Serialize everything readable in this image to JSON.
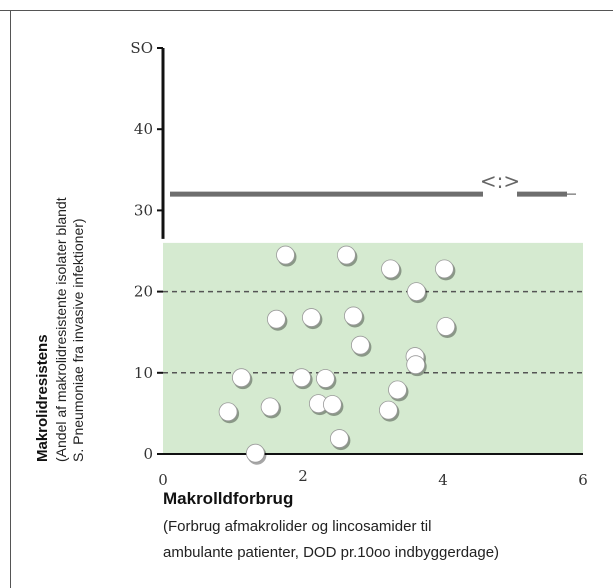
{
  "chart_data": {
    "type": "scatter",
    "title": "",
    "ylabel": "Makrolidresistens",
    "ylabel_sub": [
      "(Andel af makrolidresistente isolater blandt",
      "S. Pneumoniae fra invasive infektioner)"
    ],
    "xlabel": "Makrolldforbrug",
    "xlabel_sub": [
      "(Forbrug afmakrolider  og lincosamider til",
      "ambulante patienter, DOD pr.10oo  indbyggerdage)"
    ],
    "xlim": [
      0,
      6
    ],
    "ylim": [
      0,
      50
    ],
    "x_ticks": [
      "0",
      "2",
      "4",
      "6"
    ],
    "y_ticks": [
      "0",
      "10",
      "20",
      "30",
      "40",
      "SO"
    ],
    "threshold_line": 32,
    "green_band_max": 26,
    "dashed_lines": [
      10,
      20
    ],
    "annotation": "<:>",
    "colors": {
      "band": "#d5ead0",
      "points": "#ffffff",
      "threshold": "#6e6e6e"
    },
    "points": [
      {
        "x": 0.93,
        "y": 5.2
      },
      {
        "x": 1.12,
        "y": 9.4
      },
      {
        "x": 1.32,
        "y": 0.1
      },
      {
        "x": 1.53,
        "y": 5.8
      },
      {
        "x": 1.62,
        "y": 16.6
      },
      {
        "x": 1.75,
        "y": 24.5
      },
      {
        "x": 1.98,
        "y": 9.4
      },
      {
        "x": 2.12,
        "y": 16.8
      },
      {
        "x": 2.22,
        "y": 6.2
      },
      {
        "x": 2.32,
        "y": 9.3
      },
      {
        "x": 2.42,
        "y": 6.1
      },
      {
        "x": 2.52,
        "y": 1.9
      },
      {
        "x": 2.62,
        "y": 24.5
      },
      {
        "x": 2.72,
        "y": 17.0
      },
      {
        "x": 2.82,
        "y": 13.4
      },
      {
        "x": 3.22,
        "y": 5.4
      },
      {
        "x": 3.25,
        "y": 22.8
      },
      {
        "x": 3.35,
        "y": 7.9
      },
      {
        "x": 3.6,
        "y": 12.0
      },
      {
        "x": 3.61,
        "y": 11.0
      },
      {
        "x": 3.62,
        "y": 20.0
      },
      {
        "x": 4.02,
        "y": 22.8
      },
      {
        "x": 4.04,
        "y": 15.7
      }
    ]
  }
}
